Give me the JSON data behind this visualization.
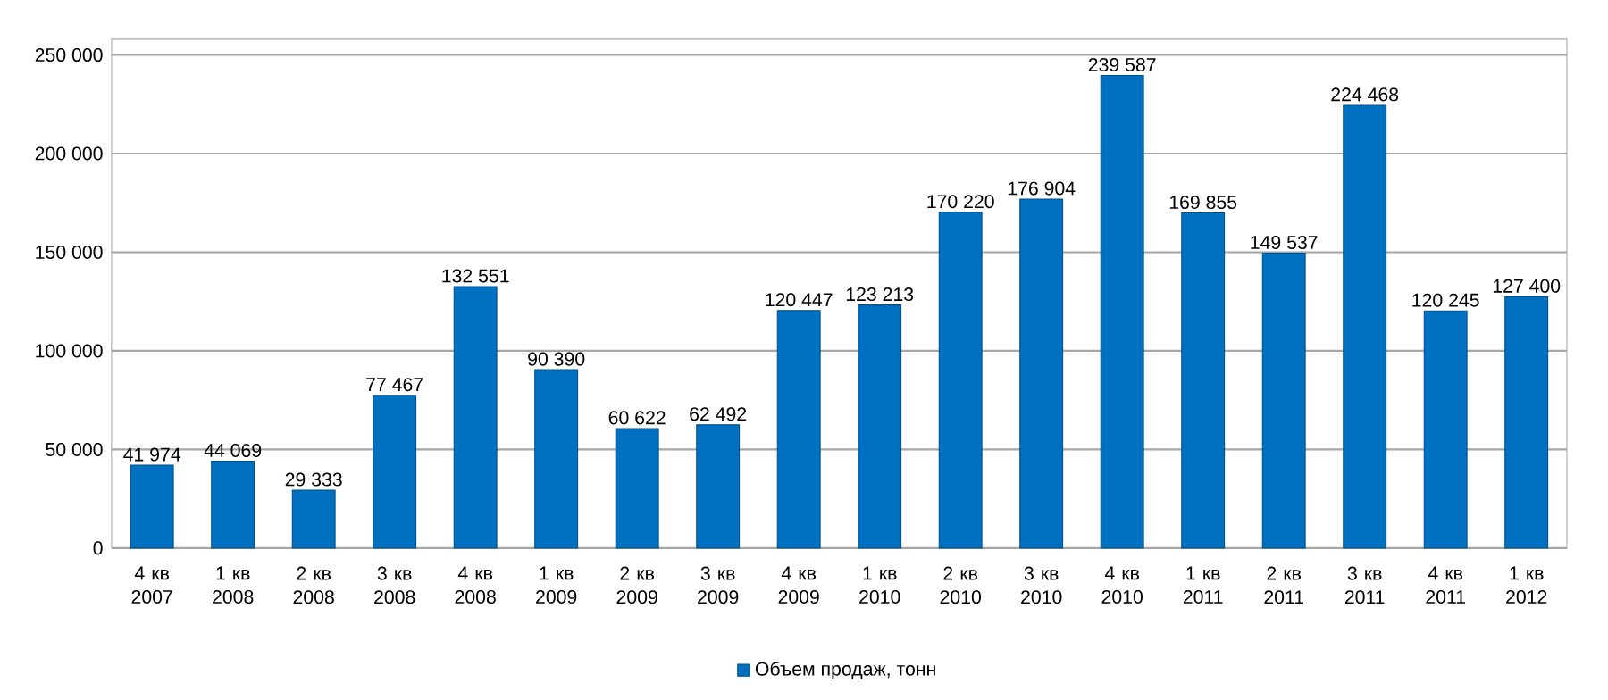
{
  "chart_data": {
    "type": "bar",
    "categories": [
      "4 кв 2007",
      "1 кв 2008",
      "2 кв 2008",
      "3 кв 2008",
      "4 кв 2008",
      "1 кв 2009",
      "2 кв 2009",
      "3 кв 2009",
      "4 кв 2009",
      "1 кв 2010",
      "2 кв 2010",
      "3 кв 2010",
      "4 кв 2010",
      "1 кв 2011",
      "2 кв 2011",
      "3 кв 2011",
      "4 кв 2011",
      "1 кв 2012"
    ],
    "series": [
      {
        "name": "Объем продаж, тонн",
        "color": "#0070c0",
        "values": [
          41974,
          44069,
          29333,
          77467,
          132551,
          90390,
          60622,
          62492,
          120447,
          123213,
          170220,
          176904,
          239587,
          169855,
          149537,
          224468,
          120245,
          127400
        ],
        "value_labels": [
          "41 974",
          "44 069",
          "29 333",
          "77 467",
          "132 551",
          "90 390",
          "60 622",
          "62 492",
          "120 447",
          "123 213",
          "170 220",
          "176 904",
          "239 587",
          "169 855",
          "149 537",
          "224 468",
          "120 245",
          "127 400"
        ]
      }
    ],
    "ylim": [
      0,
      258000
    ],
    "yticks": [
      {
        "value": 0,
        "label": "0"
      },
      {
        "value": 50000,
        "label": "50 000"
      },
      {
        "value": 100000,
        "label": "100 000"
      },
      {
        "value": 150000,
        "label": "150 000"
      },
      {
        "value": 200000,
        "label": "200 000"
      },
      {
        "value": 250000,
        "label": "250 000"
      }
    ],
    "grid": "y",
    "legend": "bottom"
  }
}
